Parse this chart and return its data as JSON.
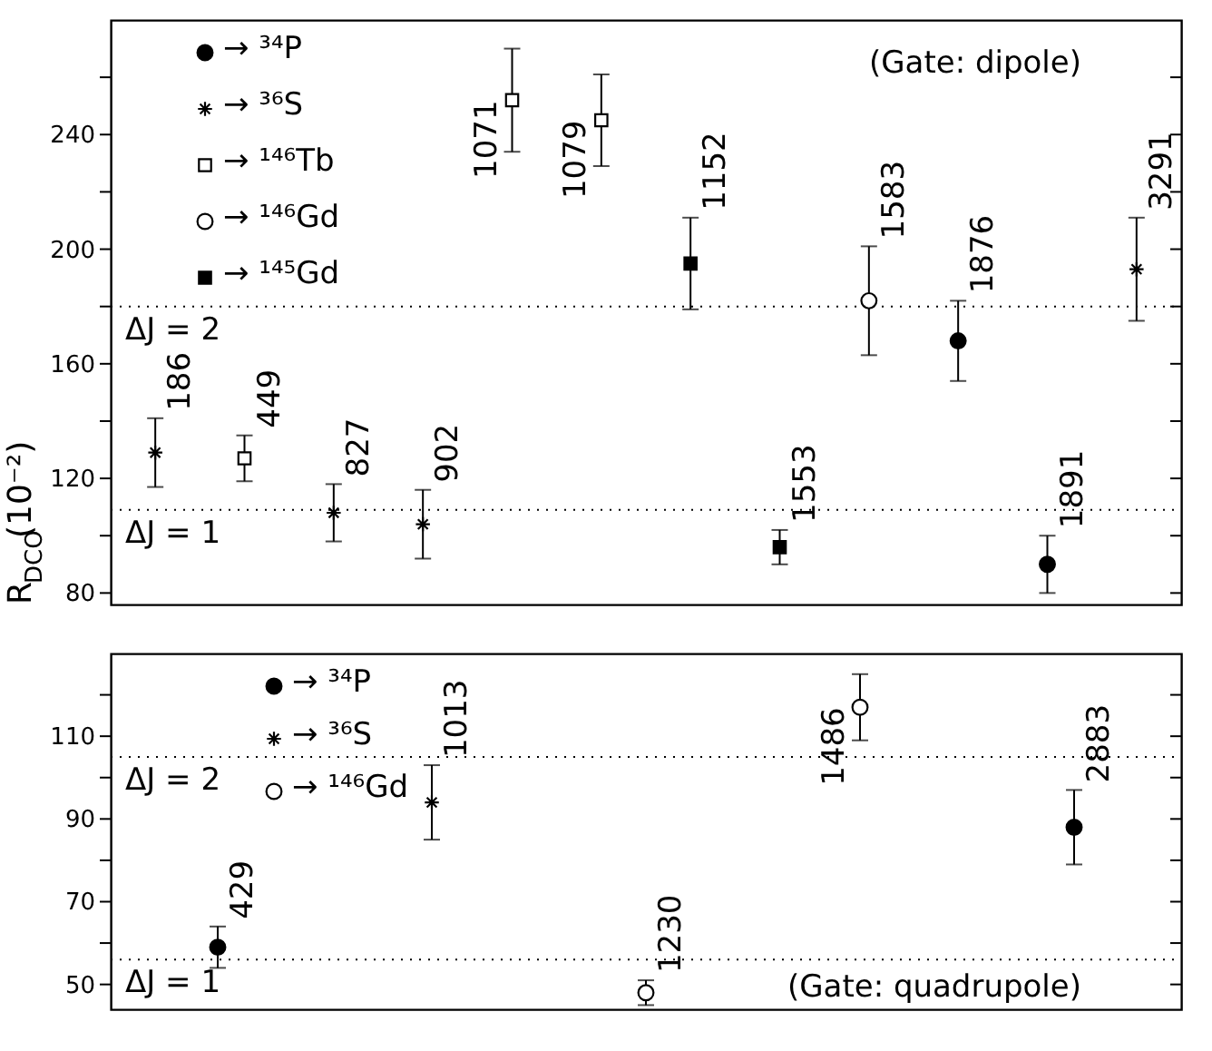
{
  "chart_data": [
    {
      "type": "scatter",
      "ylabel": "R$_{DCO}$(10⁻²)",
      "categories": [
        null,
        null,
        null,
        null,
        null,
        null,
        null,
        null,
        null,
        null,
        null,
        null
      ],
      "series": [
        {
          "name": "→ ³⁴P",
          "color": "#000000",
          "marker": "circle",
          "values": [
            null,
            null,
            null,
            null,
            null,
            null,
            null,
            null,
            null,
            168,
            90,
            null
          ],
          "errors": [
            null,
            null,
            null,
            null,
            null,
            null,
            null,
            null,
            null,
            14,
            10,
            null
          ]
        },
        {
          "name": "→ ³⁶S",
          "color": "#000000",
          "marker": "cross",
          "values": [
            129,
            null,
            108,
            104,
            null,
            null,
            null,
            null,
            null,
            null,
            null,
            193
          ],
          "errors": [
            12,
            null,
            10,
            12,
            null,
            null,
            null,
            null,
            null,
            null,
            null,
            18
          ]
        },
        {
          "name": "→ ¹⁴⁶Tb",
          "color": "#ffffff",
          "marker": "square",
          "values": [
            null,
            127,
            null,
            null,
            252,
            245,
            null,
            null,
            null,
            null,
            null,
            null
          ],
          "errors": [
            null,
            8,
            null,
            null,
            18,
            16,
            null,
            null,
            null,
            null,
            null,
            null
          ]
        },
        {
          "name": "→ ¹⁴⁶Gd",
          "color": "#ffffff",
          "marker": "circle",
          "values": [
            null,
            null,
            null,
            null,
            null,
            null,
            null,
            null,
            182,
            null,
            null,
            null
          ],
          "errors": [
            null,
            null,
            null,
            null,
            null,
            null,
            null,
            null,
            19,
            null,
            null,
            null
          ]
        },
        {
          "name": "→ ¹⁴⁵Gd",
          "color": "#000000",
          "marker": "square",
          "values": [
            null,
            null,
            null,
            null,
            null,
            null,
            195,
            96,
            null,
            null,
            null,
            null
          ],
          "errors": [
            null,
            null,
            null,
            null,
            null,
            null,
            16,
            6,
            null,
            null,
            null,
            null
          ]
        }
      ],
      "ylim": [
        76,
        280
      ],
      "yticks": [
        80,
        {
          "value": 100,
          "label": null
        },
        120,
        {
          "value": 140,
          "label": null
        },
        160,
        {
          "value": 180,
          "label": null
        },
        200,
        {
          "value": 220,
          "label": null
        },
        240,
        {
          "value": 260,
          "label": null
        }
      ],
      "ref_lines": [
        {
          "axis": "y",
          "value": 180,
          "line_style": "dotted"
        },
        {
          "axis": "y",
          "value": 109,
          "line_style": "dotted"
        }
      ],
      "annotations": [
        {
          "text": "ΔJ = 2",
          "y": 180
        },
        {
          "text": "ΔJ = 1",
          "y": 109
        },
        "186",
        "449",
        "827",
        "902",
        "1071",
        "1079",
        "1152",
        "1553",
        "1583",
        "1876",
        "1891",
        "3291",
        "(Gate: dipole)"
      ],
      "legend": "top left",
      "grid": false,
      "tick_labels": "y"
    },
    {
      "type": "scatter",
      "categories": [
        null,
        null,
        null,
        null,
        null
      ],
      "series": [
        {
          "name": "→ ³⁴P",
          "color": "#000000",
          "marker": "circle",
          "values": [
            59,
            null,
            null,
            null,
            88
          ],
          "errors": [
            5,
            null,
            null,
            null,
            9
          ]
        },
        {
          "name": "→ ³⁶S",
          "color": "#000000",
          "marker": "cross",
          "values": [
            null,
            94,
            null,
            null,
            null
          ],
          "errors": [
            null,
            9,
            null,
            null,
            null
          ]
        },
        {
          "name": "→ ¹⁴⁶Gd",
          "color": "#ffffff",
          "marker": "circle",
          "values": [
            null,
            null,
            48,
            117,
            null
          ],
          "errors": [
            null,
            null,
            3,
            8,
            null
          ]
        }
      ],
      "ylim": [
        44,
        130
      ],
      "yticks": [
        50,
        {
          "value": 60,
          "label": null
        },
        70,
        {
          "value": 80,
          "label": null
        },
        90,
        {
          "value": 100,
          "label": null
        },
        110,
        {
          "value": 120,
          "label": null
        }
      ],
      "ref_lines": [
        {
          "axis": "y",
          "value": 105,
          "line_style": "dotted"
        },
        {
          "axis": "y",
          "value": 56,
          "line_style": "dotted"
        }
      ],
      "annotations": [
        {
          "text": "ΔJ = 2",
          "y": 105
        },
        {
          "text": "ΔJ = 1",
          "y": 56
        },
        "429",
        "1013",
        "1230",
        "1486",
        "2883",
        "(Gate: quadrupole)"
      ],
      "legend": "top left",
      "grid": false,
      "tick_labels": "y"
    }
  ]
}
